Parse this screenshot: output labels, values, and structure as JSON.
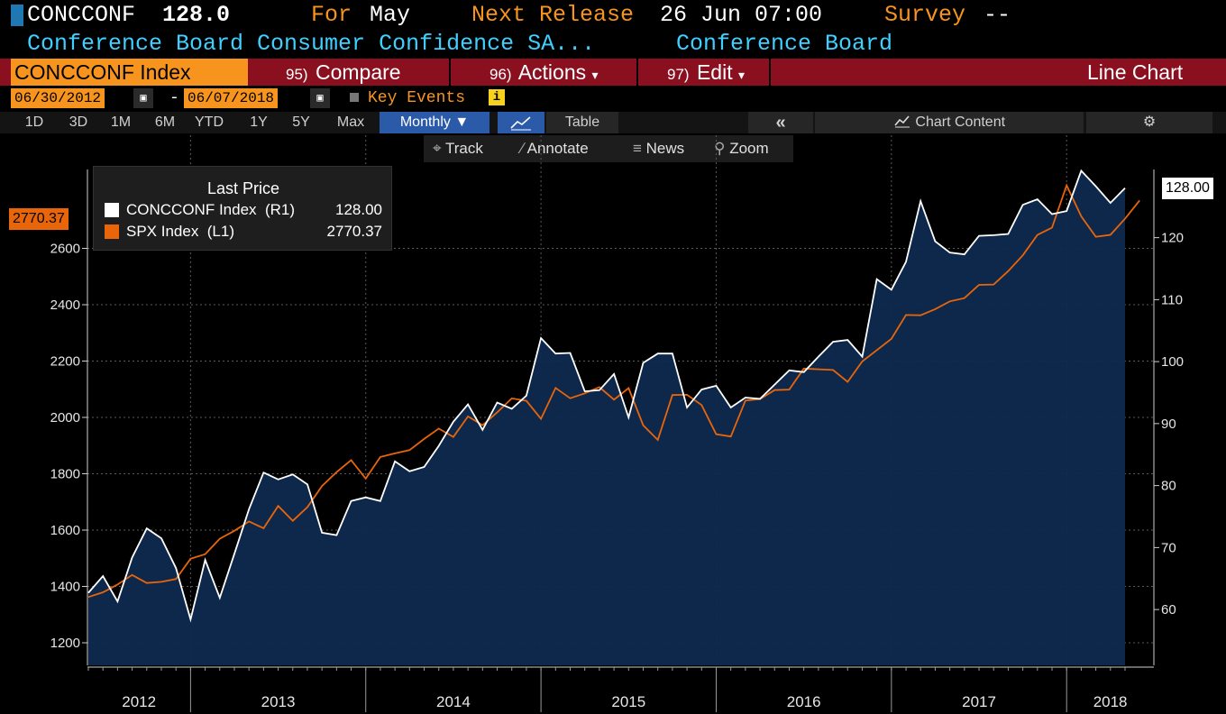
{
  "header": {
    "ticker": "CONCCONF",
    "value": "128.0",
    "for_label": "For",
    "for_month": "May",
    "next_release_label": "Next Release",
    "next_release": "26 Jun 07:00",
    "survey_label": "Survey",
    "survey_value": "--",
    "description": "Conference Board Consumer Confidence SA...",
    "source": "Conference Board"
  },
  "command_bar": {
    "security": "CONCCONF Index",
    "compare_num": "95)",
    "compare": "Compare",
    "actions_num": "96)",
    "actions": "Actions",
    "edit_num": "97)",
    "edit": "Edit",
    "chart_type": "Line Chart"
  },
  "date_range": {
    "start": "06/30/2012",
    "dash": "-",
    "end": "06/07/2018",
    "key_events": "Key Events",
    "info": "i"
  },
  "toolbar": {
    "ranges": [
      "1D",
      "3D",
      "1M",
      "6M",
      "YTD",
      "1Y",
      "5Y",
      "Max"
    ],
    "frequency": "Monthly ▼",
    "table": "Table",
    "collapse": "«",
    "chart_content": "Chart Content"
  },
  "subtoolbar": {
    "track": "Track",
    "annotate": "Annotate",
    "news": "News",
    "zoom": "Zoom"
  },
  "legend": {
    "title": "Last Price",
    "series1_label": "CONCCONF Index  (R1)",
    "series1_value": "128.00",
    "series2_label": "SPX Index  (L1)",
    "series2_value": "2770.37"
  },
  "tags": {
    "left": "2770.37",
    "right": "128.00"
  },
  "colors": {
    "conccconf": "#ffffff",
    "spx": "#e8650a",
    "area": "#0f2a4f",
    "accent": "#f7941d",
    "cmdbar": "#8a1020"
  },
  "chart_data": {
    "type": "line",
    "x_start": "2012-06",
    "x_end": "2018-05",
    "x_ticks": [
      "2012",
      "2013",
      "2014",
      "2015",
      "2016",
      "2017",
      "2018"
    ],
    "left_axis": {
      "series": "SPX Index",
      "ylim": [
        1120,
        2880
      ],
      "ticks": [
        1200,
        1400,
        1600,
        1800,
        2000,
        2200,
        2400,
        2600
      ]
    },
    "right_axis": {
      "series": "CONCCONF Index",
      "ylim": [
        51,
        131
      ],
      "ticks": [
        60,
        70,
        80,
        90,
        100,
        110,
        120
      ]
    },
    "series": [
      {
        "name": "CONCCONF Index",
        "axis": "right",
        "values": [
          62.7,
          65.4,
          61.3,
          68.4,
          73.1,
          71.5,
          66.7,
          58.4,
          68.0,
          61.9,
          69.0,
          76.2,
          82.1,
          81.0,
          81.8,
          80.2,
          72.4,
          72.0,
          77.5,
          78.1,
          77.5,
          83.9,
          82.3,
          83.0,
          86.4,
          90.3,
          93.1,
          89.0,
          93.4,
          92.4,
          94.5,
          103.8,
          101.3,
          101.4,
          95.2,
          95.4,
          98.0,
          91.0,
          99.8,
          101.3,
          101.3,
          92.6,
          95.5,
          96.1,
          92.6,
          94.2,
          94.0,
          96.3,
          98.6,
          98.3,
          100.8,
          103.2,
          103.5,
          100.8,
          113.3,
          111.6,
          116.1,
          125.9,
          119.4,
          117.6,
          117.3,
          120.3,
          120.4,
          120.6,
          125.3,
          126.2,
          123.8,
          124.3,
          130.8,
          128.3,
          125.6,
          128.0
        ]
      },
      {
        "name": "SPX Index",
        "axis": "left",
        "values": [
          1362.16,
          1379.32,
          1406.58,
          1440.67,
          1412.16,
          1416.18,
          1426.19,
          1498.11,
          1514.68,
          1569.19,
          1597.57,
          1630.74,
          1606.28,
          1685.73,
          1632.97,
          1681.55,
          1756.54,
          1805.81,
          1848.36,
          1782.59,
          1859.45,
          1872.34,
          1883.95,
          1923.57,
          1960.23,
          1930.67,
          2003.37,
          1972.29,
          2018.05,
          2067.56,
          2058.9,
          1994.99,
          2104.5,
          2067.89,
          2085.51,
          2107.39,
          2063.11,
          2103.84,
          1972.18,
          1920.03,
          2079.36,
          2080.41,
          2043.94,
          1940.24,
          1932.23,
          2059.74,
          2065.3,
          2096.95,
          2098.86,
          2173.6,
          2170.95,
          2168.27,
          2126.15,
          2198.81,
          2238.83,
          2278.87,
          2363.64,
          2362.72,
          2384.2,
          2411.8,
          2423.41,
          2470.3,
          2471.65,
          2519.36,
          2575.26,
          2647.58,
          2673.61,
          2823.81,
          2713.83,
          2640.87,
          2648.05,
          2705.27,
          2770.37
        ]
      }
    ]
  }
}
